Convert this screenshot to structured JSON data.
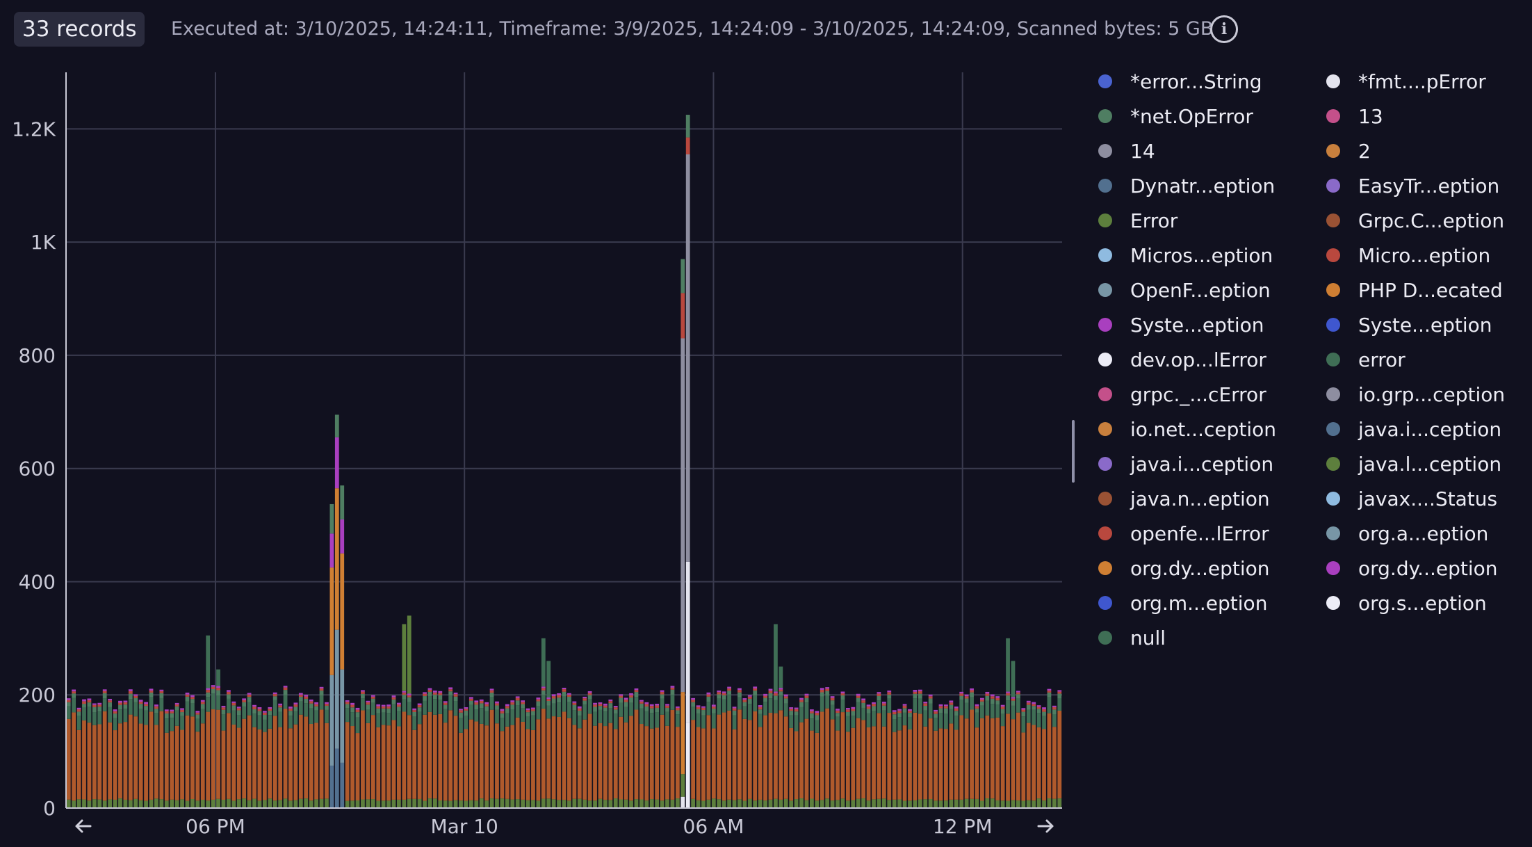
{
  "header": {
    "records_badge": "33 records",
    "execution_info": "Executed at: 3/10/2025, 14:24:11, Timeframe: 3/9/2025, 14:24:09 - 3/10/2025, 14:24:09, Scanned bytes: 5 GB",
    "info_icon": "info-icon"
  },
  "chart_data": {
    "type": "bar",
    "stacked": true,
    "title": "",
    "xlabel": "",
    "ylabel": "",
    "ylim": [
      0,
      1300
    ],
    "yticks": [
      0,
      200,
      400,
      600,
      800,
      1000,
      1200
    ],
    "ytick_labels": [
      "0",
      "200",
      "400",
      "600",
      "800",
      "1K",
      "1.2K"
    ],
    "x_range": [
      "3/9/2025 14:24",
      "3/10/2025 14:24"
    ],
    "x_ticks": [
      {
        "t": "3/9/2025 18:00",
        "label": "06 PM"
      },
      {
        "t": "3/10/2025 00:00",
        "label": "Mar 10"
      },
      {
        "t": "3/10/2025 06:00",
        "label": "06 AM"
      },
      {
        "t": "3/10/2025 12:00",
        "label": "12 PM"
      }
    ],
    "grid": true,
    "legend_position": "right",
    "bar_interval_minutes": 7.5,
    "bar_count": 193,
    "typical_bar_total": 195,
    "series": [
      {
        "name": "*error...String",
        "color": "#4a63d0"
      },
      {
        "name": "*fmt....pError",
        "color": "#e4e4ee"
      },
      {
        "name": "*net.OpError",
        "color": "#4f7e62"
      },
      {
        "name": "13",
        "color": "#c4508a"
      },
      {
        "name": "14",
        "color": "#8e8ea0"
      },
      {
        "name": "2",
        "color": "#c9803d"
      },
      {
        "name": "Dynatr...eption",
        "color": "#52708f"
      },
      {
        "name": "EasyTr...eption",
        "color": "#8a6ac9"
      },
      {
        "name": "Error",
        "color": "#5d7f3d"
      },
      {
        "name": "Grpc.C...eption",
        "color": "#9a5234"
      },
      {
        "name": "Micros...eption",
        "color": "#8fbbe0"
      },
      {
        "name": "Micro...eption",
        "color": "#b9483e"
      },
      {
        "name": "OpenF...eption",
        "color": "#7896a6"
      },
      {
        "name": "PHP D...ecated",
        "color": "#cf7f33"
      },
      {
        "name": "Syste...eption",
        "color": "#a93fbf"
      },
      {
        "name": "Syste...eption",
        "color": "#3f57cf"
      },
      {
        "name": "dev.op...lError",
        "color": "#ececf6"
      },
      {
        "name": "error",
        "color": "#3f6e55"
      },
      {
        "name": "grpc._...cError",
        "color": "#c4508a"
      },
      {
        "name": "io.grp...ception",
        "color": "#8e8ea0"
      },
      {
        "name": "io.net...ception",
        "color": "#c9803d"
      },
      {
        "name": "java.i...ception",
        "color": "#52708f"
      },
      {
        "name": "java.i...ception",
        "color": "#8a6ac9"
      },
      {
        "name": "java.l...ception",
        "color": "#5d7f3d"
      },
      {
        "name": "java.n...eption",
        "color": "#9a5234"
      },
      {
        "name": "javax....Status",
        "color": "#8fbbe0"
      },
      {
        "name": "openfe...lError",
        "color": "#b9483e"
      },
      {
        "name": "org.a...eption",
        "color": "#7896a6"
      },
      {
        "name": "org.dy...eption",
        "color": "#cf7f33"
      },
      {
        "name": "org.dy...eption",
        "color": "#a93fbf"
      },
      {
        "name": "org.m...eption",
        "color": "#3f57cf"
      },
      {
        "name": "org.s...eption",
        "color": "#ececf6"
      },
      {
        "name": "null",
        "color": "#3f6e55"
      }
    ],
    "base_stack_colors": [
      "#5d7f3d",
      "#b05a2c",
      "#3f6e55",
      "#4f7e62",
      "#b9483e",
      "#a93fbf"
    ],
    "base_stack_values": [
      15,
      140,
      25,
      8,
      4,
      3
    ],
    "spikes": [
      {
        "t": "3/9/2025 17:45",
        "total": 305,
        "top_series": "error"
      },
      {
        "t": "3/9/2025 18:00",
        "total": 245,
        "top_series": "error"
      },
      {
        "t": "3/9/2025 20:45",
        "total": 537,
        "stack": [
          {
            "s": "java.i...ception",
            "v": 75
          },
          {
            "s": "OpenF...eption",
            "v": 160
          },
          {
            "s": "PHP D...ecated",
            "v": 190
          },
          {
            "s": "Syste...eption",
            "v": 60
          },
          {
            "s": "*net.OpError",
            "v": 52
          }
        ]
      },
      {
        "t": "3/9/2025 20:52",
        "total": 695,
        "stack": [
          {
            "s": "java.i...ception",
            "v": 105
          },
          {
            "s": "OpenF...eption",
            "v": 210
          },
          {
            "s": "PHP D...ecated",
            "v": 250
          },
          {
            "s": "Syste...eption",
            "v": 90
          },
          {
            "s": "*net.OpError",
            "v": 40
          }
        ]
      },
      {
        "t": "3/9/2025 21:00",
        "total": 570,
        "stack": [
          {
            "s": "java.i...ception",
            "v": 80
          },
          {
            "s": "OpenF...eption",
            "v": 165
          },
          {
            "s": "PHP D...ecated",
            "v": 205
          },
          {
            "s": "Syste...eption",
            "v": 60
          },
          {
            "s": "*net.OpError",
            "v": 60
          }
        ]
      },
      {
        "t": "3/9/2025 22:30",
        "total": 325,
        "top_series": "Error"
      },
      {
        "t": "3/9/2025 22:37",
        "total": 340,
        "top_series": "Error"
      },
      {
        "t": "3/10/2025 01:52",
        "total": 300,
        "top_series": "error"
      },
      {
        "t": "3/10/2025 02:00",
        "total": 260,
        "top_series": "error"
      },
      {
        "t": "3/10/2025 05:15",
        "total": 970,
        "stack": [
          {
            "s": "*fmt....pError",
            "v": 20
          },
          {
            "s": "Error",
            "v": 40
          },
          {
            "s": "PHP D...ecated",
            "v": 145
          },
          {
            "s": "io.grp...ception",
            "v": 625
          },
          {
            "s": "Micro...eption",
            "v": 80
          },
          {
            "s": "*net.OpError",
            "v": 60
          }
        ]
      },
      {
        "t": "3/10/2025 05:22",
        "total": 1225,
        "stack": [
          {
            "s": "dev.op...lError",
            "v": 150
          },
          {
            "s": "*fmt....pError",
            "v": 285
          },
          {
            "s": "io.grp...ception",
            "v": 720
          },
          {
            "s": "Micro...eption",
            "v": 30
          },
          {
            "s": "*net.OpError",
            "v": 40
          }
        ]
      },
      {
        "t": "3/10/2025 07:30",
        "total": 325,
        "top_series": "error"
      },
      {
        "t": "3/10/2025 07:37",
        "total": 250,
        "top_series": "error"
      },
      {
        "t": "3/10/2025 13:07",
        "total": 300,
        "top_series": "error"
      },
      {
        "t": "3/10/2025 13:15",
        "total": 260,
        "top_series": "error"
      }
    ]
  },
  "icons": {
    "prev": "arrow-left-icon",
    "next": "arrow-right-icon"
  }
}
